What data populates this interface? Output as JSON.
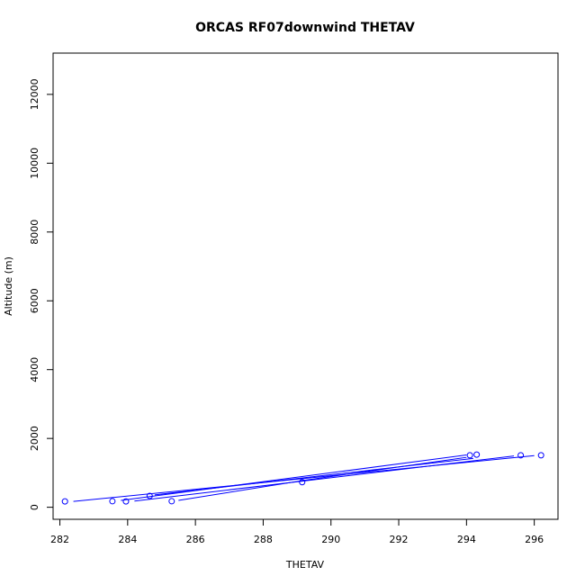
{
  "chart_data": {
    "type": "line",
    "title": "ORCAS RF07downwind THETAV",
    "xlabel": "THETAV",
    "ylabel": "Altitude (m)",
    "xlim": [
      281.8,
      296.7
    ],
    "ylim": [
      -350,
      13200
    ],
    "x_ticks": [
      282,
      284,
      286,
      288,
      290,
      292,
      294,
      296
    ],
    "y_ticks": [
      0,
      2000,
      4000,
      6000,
      8000,
      10000,
      12000
    ],
    "x_tick_labels": [
      "282",
      "284",
      "286",
      "288",
      "290",
      "292",
      "294",
      "296"
    ],
    "y_tick_labels": [
      "0",
      "2000",
      "4000",
      "6000",
      "8000",
      "10000",
      "12000"
    ],
    "grid": false,
    "colors": {
      "series": "#0000ff",
      "axis": "#000000",
      "background": "#ffffff"
    },
    "series": [
      {
        "marker": "open-circle",
        "points": [
          {
            "x": 282.15,
            "y": 170
          },
          {
            "x": 283.55,
            "y": 175
          },
          {
            "x": 283.95,
            "y": 170
          },
          {
            "x": 284.65,
            "y": 330
          },
          {
            "x": 285.3,
            "y": 175
          },
          {
            "x": 289.15,
            "y": 730
          },
          {
            "x": 294.1,
            "y": 1510
          },
          {
            "x": 294.3,
            "y": 1530
          },
          {
            "x": 295.6,
            "y": 1510
          },
          {
            "x": 296.2,
            "y": 1510
          }
        ],
        "segments": [
          {
            "from": {
              "x": 282.4,
              "y": 170
            },
            "to": {
              "x": 296.0,
              "y": 1500
            }
          },
          {
            "from": {
              "x": 283.8,
              "y": 200
            },
            "to": {
              "x": 294.0,
              "y": 1520
            }
          },
          {
            "from": {
              "x": 284.2,
              "y": 180
            },
            "to": {
              "x": 295.4,
              "y": 1490
            }
          },
          {
            "from": {
              "x": 285.5,
              "y": 200
            },
            "to": {
              "x": 289.2,
              "y": 780
            }
          },
          {
            "from": {
              "x": 289.2,
              "y": 780
            },
            "to": {
              "x": 294.0,
              "y": 1450
            }
          },
          {
            "from": {
              "x": 284.8,
              "y": 360
            },
            "to": {
              "x": 294.2,
              "y": 1420
            }
          }
        ]
      }
    ]
  }
}
